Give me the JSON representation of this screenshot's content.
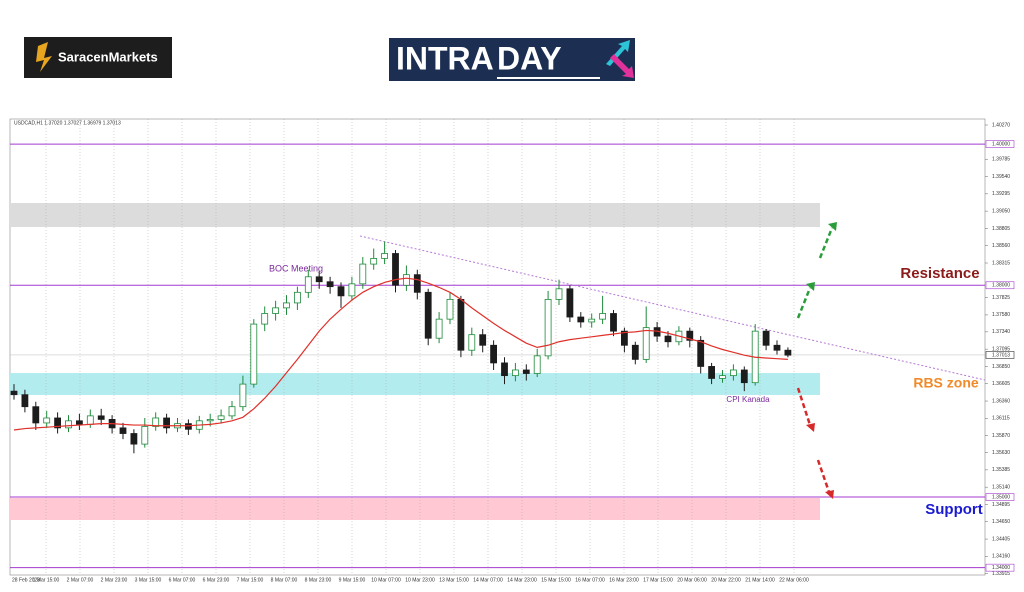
{
  "brand": "SaracenMarkets",
  "logo": [
    "INTRA",
    "DAY"
  ],
  "chart_data": {
    "type": "candlestick",
    "symbol_info": "USDCAD,H1  1.37020 1.37027 1.36979 1.37013",
    "x_labels": [
      "28 Feb 2023",
      "1 Mar 15:00",
      "2 Mar 07:00",
      "2 Mar 23:00",
      "3 Mar 15:00",
      "6 Mar 07:00",
      "6 Mar 23:00",
      "7 Mar 15:00",
      "8 Mar 07:00",
      "8 Mar 23:00",
      "9 Mar 15:00",
      "10 Mar 07:00",
      "10 Mar 23:00",
      "13 Mar 15:00",
      "14 Mar 07:00",
      "14 Mar 23:00",
      "15 Mar 15:00",
      "16 Mar 07:00",
      "16 Mar 23:00",
      "17 Mar 15:00",
      "20 Mar 06:00",
      "20 Mar 22:00",
      "21 Mar 14:00",
      "22 Mar 06:00"
    ],
    "ylim": [
      1.33896,
      1.40355
    ],
    "yticks": [
      {
        "value": 1.4027,
        "label": "1.40270"
      },
      1.39785,
      {
        "value": 1.3954,
        "label": "1.39540"
      },
      1.39295,
      {
        "value": 1.3905,
        "label": "1.39050"
      },
      1.38805,
      {
        "value": 1.3856,
        "label": "1.38560"
      },
      1.38315,
      1.37825,
      {
        "value": 1.3758,
        "label": "1.37580"
      },
      {
        "value": 1.3734,
        "label": "1.37340"
      },
      1.37095,
      {
        "value": 1.3685,
        "label": "1.36850"
      },
      1.36605,
      {
        "value": 1.3636,
        "label": "1.36360"
      },
      1.36115,
      {
        "value": 1.3587,
        "label": "1.35870"
      },
      {
        "value": 1.3563,
        "label": "1.35630"
      },
      1.35385,
      {
        "value": 1.3514,
        "label": "1.35140"
      },
      1.34895,
      {
        "value": 1.3465,
        "label": "1.34650"
      },
      1.34405,
      {
        "value": 1.3416,
        "label": "1.34160"
      },
      1.33915
    ],
    "levels": [
      {
        "value": 1.4,
        "label": "1.40000"
      },
      {
        "value": 1.38,
        "label": "1.38000"
      },
      {
        "value": 1.35,
        "label": "1.35000"
      },
      {
        "value": 1.34,
        "label": "1.34000"
      }
    ],
    "level_color": "#a43ad0",
    "last_price": 1.37013,
    "zones": [
      {
        "top": 1.39165,
        "bottom": 1.38825,
        "color": "#dcdcdc"
      },
      {
        "top": 1.36757,
        "bottom": 1.36446,
        "color": "#b3ecef"
      },
      {
        "top": 1.34987,
        "bottom": 1.34675,
        "color": "#ffc8d2"
      }
    ],
    "trendline": {
      "start": 1.38698,
      "end": 1.36658,
      "color": "#b57ad6"
    },
    "bull_color": "#1f8a3b",
    "bear_color": "#1c1c1c",
    "ma_color": "#e0302a",
    "open": [
      1.365,
      1.3645,
      1.3628,
      1.3605,
      1.3612,
      1.3598,
      1.3608,
      1.3603,
      1.3615,
      1.361,
      1.3598,
      1.359,
      1.3575,
      1.36,
      1.3612,
      1.3598,
      1.3604,
      1.3596,
      1.3608,
      1.361,
      1.3615,
      1.3628,
      1.366,
      1.3745,
      1.376,
      1.3768,
      1.3775,
      1.379,
      1.3812,
      1.3805,
      1.3798,
      1.3785,
      1.3802,
      1.383,
      1.3838,
      1.3845,
      1.38,
      1.3815,
      1.379,
      1.3725,
      1.3752,
      1.378,
      1.3708,
      1.373,
      1.3715,
      1.369,
      1.3672,
      1.368,
      1.3675,
      1.37,
      1.378,
      1.3795,
      1.3755,
      1.3748,
      1.3752,
      1.376,
      1.3735,
      1.3715,
      1.3695,
      1.374,
      1.3728,
      1.372,
      1.3735,
      1.3722,
      1.3685,
      1.3668,
      1.3672,
      1.368,
      1.3662,
      1.3735,
      1.3715,
      1.3708
    ],
    "high": [
      1.366,
      1.3652,
      1.3635,
      1.3622,
      1.362,
      1.3616,
      1.3618,
      1.3624,
      1.3625,
      1.3616,
      1.3605,
      1.3596,
      1.3612,
      1.362,
      1.3618,
      1.3612,
      1.361,
      1.3615,
      1.3618,
      1.3624,
      1.3636,
      1.3672,
      1.3752,
      1.377,
      1.3778,
      1.3786,
      1.3798,
      1.3822,
      1.382,
      1.3812,
      1.3804,
      1.3812,
      1.384,
      1.3852,
      1.3862,
      1.385,
      1.3828,
      1.3822,
      1.3795,
      1.3762,
      1.379,
      1.3785,
      1.374,
      1.3738,
      1.3722,
      1.3698,
      1.369,
      1.3688,
      1.371,
      1.3792,
      1.3808,
      1.38,
      1.3762,
      1.376,
      1.3785,
      1.3765,
      1.374,
      1.372,
      1.377,
      1.3748,
      1.3735,
      1.3742,
      1.374,
      1.3728,
      1.369,
      1.368,
      1.3688,
      1.3685,
      1.3745,
      1.3738,
      1.3722,
      1.3712
    ],
    "low": [
      1.3638,
      1.362,
      1.3595,
      1.3598,
      1.359,
      1.3592,
      1.3595,
      1.3598,
      1.3602,
      1.359,
      1.3582,
      1.3562,
      1.357,
      1.3594,
      1.359,
      1.3592,
      1.3588,
      1.359,
      1.36,
      1.3604,
      1.361,
      1.3622,
      1.3655,
      1.3735,
      1.375,
      1.3758,
      1.3765,
      1.3782,
      1.3795,
      1.3788,
      1.3768,
      1.3778,
      1.3795,
      1.3822,
      1.383,
      1.379,
      1.3792,
      1.378,
      1.3715,
      1.3718,
      1.3745,
      1.3698,
      1.37,
      1.3705,
      1.368,
      1.366,
      1.3664,
      1.3665,
      1.367,
      1.3695,
      1.3772,
      1.3748,
      1.374,
      1.374,
      1.3745,
      1.3728,
      1.3705,
      1.3688,
      1.369,
      1.372,
      1.3712,
      1.3715,
      1.3712,
      1.3675,
      1.366,
      1.3662,
      1.3665,
      1.365,
      1.3658,
      1.3708,
      1.3702,
      1.3698
    ],
    "close": [
      1.3645,
      1.3628,
      1.3605,
      1.3612,
      1.3598,
      1.3608,
      1.3603,
      1.3615,
      1.361,
      1.3598,
      1.359,
      1.3575,
      1.36,
      1.3612,
      1.3598,
      1.3604,
      1.3596,
      1.3608,
      1.361,
      1.3615,
      1.3628,
      1.366,
      1.3745,
      1.376,
      1.3768,
      1.3775,
      1.379,
      1.3812,
      1.3805,
      1.3798,
      1.3785,
      1.3802,
      1.383,
      1.3838,
      1.3845,
      1.38,
      1.3815,
      1.379,
      1.3725,
      1.3752,
      1.378,
      1.3708,
      1.373,
      1.3715,
      1.369,
      1.3672,
      1.368,
      1.3675,
      1.37,
      1.378,
      1.3795,
      1.3755,
      1.3748,
      1.3752,
      1.376,
      1.3735,
      1.3715,
      1.3695,
      1.374,
      1.3728,
      1.372,
      1.3735,
      1.3722,
      1.3685,
      1.3668,
      1.3672,
      1.368,
      1.3662,
      1.3735,
      1.3715,
      1.3708,
      1.3701
    ],
    "ma": [
      1.3595,
      1.3597,
      1.3598,
      1.3599,
      1.36,
      1.3601,
      1.3602,
      1.3603,
      1.3604,
      1.3604,
      1.3603,
      1.3602,
      1.3602,
      1.3601,
      1.3601,
      1.3601,
      1.3601,
      1.3602,
      1.3603,
      1.3605,
      1.3608,
      1.3613,
      1.3625,
      1.364,
      1.3657,
      1.3676,
      1.3695,
      1.3715,
      1.3735,
      1.3752,
      1.3766,
      1.3779,
      1.379,
      1.3798,
      1.3804,
      1.3808,
      1.381,
      1.3808,
      1.3803,
      1.3797,
      1.379,
      1.378,
      1.3768,
      1.3757,
      1.3746,
      1.3736,
      1.3727,
      1.3718,
      1.3712,
      1.3715,
      1.372,
      1.3723,
      1.3725,
      1.3727,
      1.3729,
      1.3731,
      1.3733,
      1.3734,
      1.3736,
      1.3735,
      1.3732,
      1.3728,
      1.3724,
      1.372,
      1.3714,
      1.3709,
      1.3705,
      1.3701,
      1.3698,
      1.3697,
      1.3696,
      1.3695
    ],
    "annotations": {
      "boc": "BOC Meeting",
      "cpi": "CPI Kanada",
      "resistance": "Resistance",
      "rbs": "RBS zone",
      "support": "Support"
    }
  }
}
